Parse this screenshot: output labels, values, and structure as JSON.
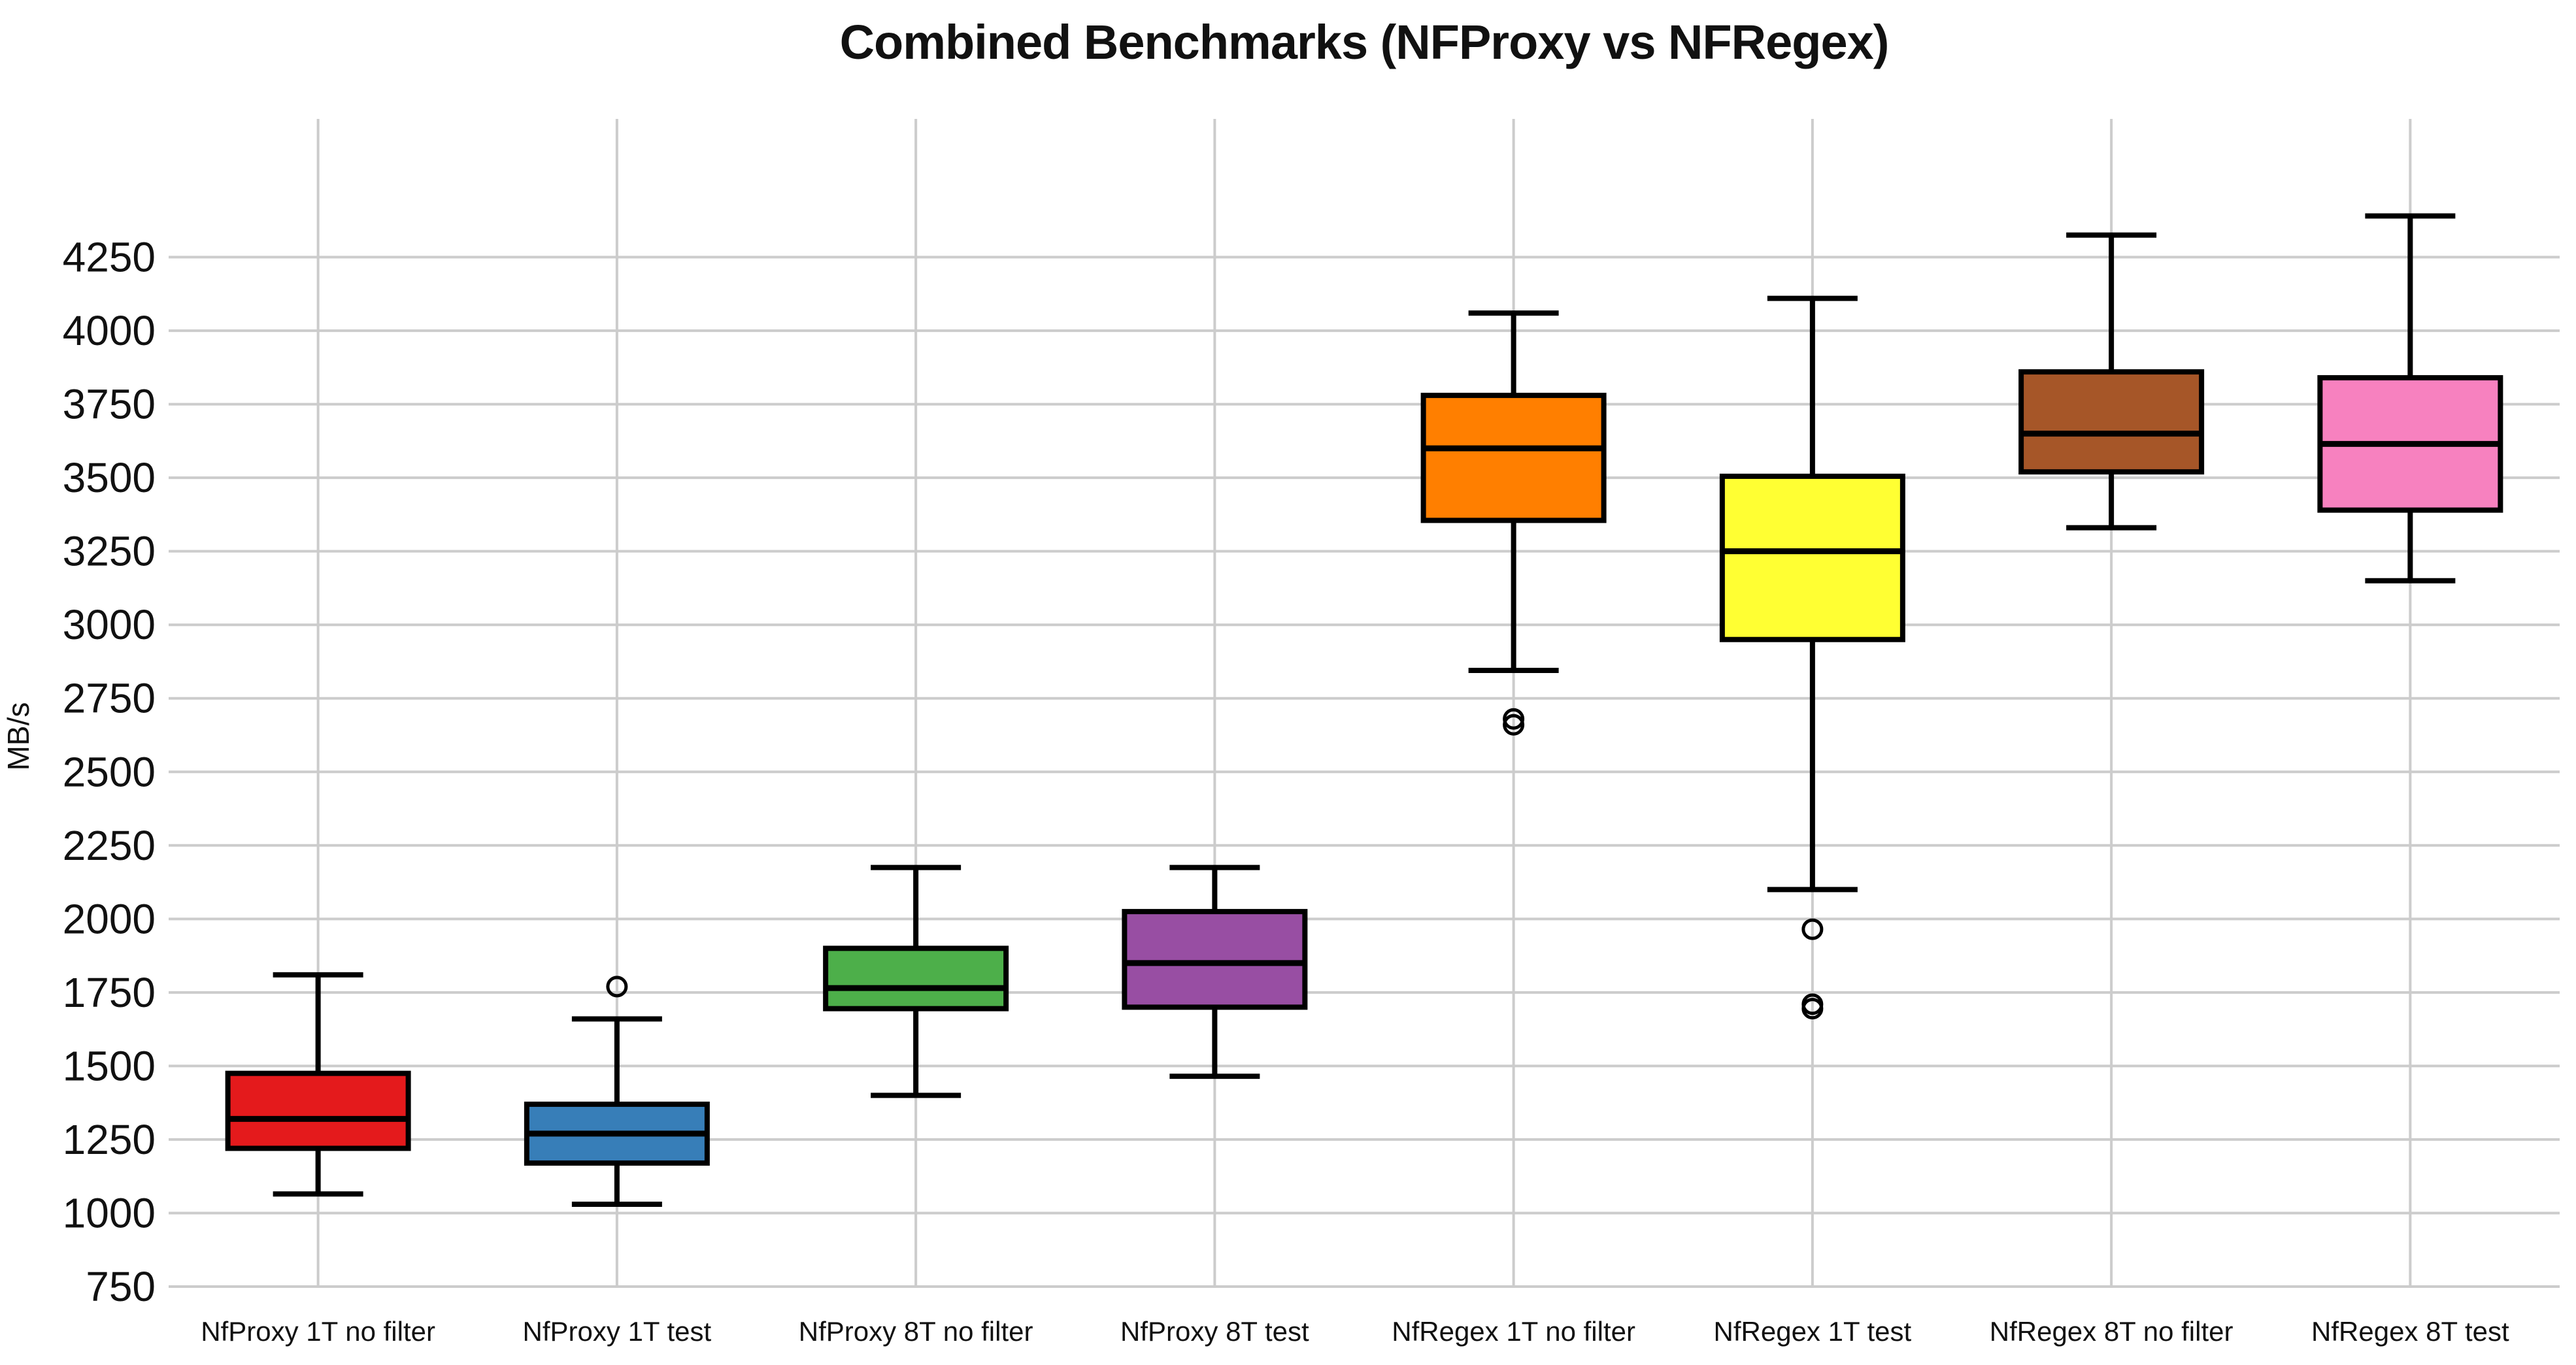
{
  "title": "Combined Benchmarks (NFProxy vs NFRegex)",
  "colors": {
    "background": "#ffffff",
    "grid": "#cccccc",
    "box_border": "#000000",
    "text": "#111111"
  },
  "chart_data": {
    "type": "box",
    "title": "Combined Benchmarks (NFProxy vs NFRegex)",
    "xlabel": "",
    "ylabel": "MB/s",
    "ylim": [
      750,
      4720
    ],
    "yticks": [
      750,
      1000,
      1250,
      1500,
      1750,
      2000,
      2250,
      2500,
      2750,
      3000,
      3250,
      3500,
      3750,
      4000,
      4250
    ],
    "grid": "both",
    "legend": "none",
    "categories": [
      "NfProxy 1T no filter",
      "NfProxy 1T test",
      "NfProxy 8T no filter",
      "NfProxy 8T test",
      "NfRegex 1T no filter",
      "NfRegex 1T test",
      "NfRegex 8T no filter",
      "NfRegex 8T test"
    ],
    "series": [
      {
        "label": "NfProxy 1T no filter",
        "color": "#e41a1c",
        "whisker_low": 1065,
        "q1": 1220,
        "median": 1320,
        "q3": 1475,
        "whisker_high": 1810,
        "outliers": []
      },
      {
        "label": "NfProxy 1T test",
        "color": "#377eb8",
        "whisker_low": 1030,
        "q1": 1170,
        "median": 1270,
        "q3": 1370,
        "whisker_high": 1660,
        "outliers": [
          1770
        ]
      },
      {
        "label": "NfProxy 8T no filter",
        "color": "#4daf4a",
        "whisker_low": 1400,
        "q1": 1695,
        "median": 1765,
        "q3": 1900,
        "whisker_high": 2175,
        "outliers": []
      },
      {
        "label": "NfProxy 8T test",
        "color": "#984ea3",
        "whisker_low": 1465,
        "q1": 1700,
        "median": 1850,
        "q3": 2025,
        "whisker_high": 2175,
        "outliers": []
      },
      {
        "label": "NfRegex 1T no filter",
        "color": "#ff7f00",
        "whisker_low": 2845,
        "q1": 3355,
        "median": 3600,
        "q3": 3780,
        "whisker_high": 4060,
        "outliers": [
          2680,
          2660
        ]
      },
      {
        "label": "NfRegex 1T test",
        "color": "#ffff33",
        "whisker_low": 2100,
        "q1": 2950,
        "median": 3250,
        "q3": 3505,
        "whisker_high": 4110,
        "outliers": [
          1965,
          1710,
          1695
        ]
      },
      {
        "label": "NfRegex 8T no filter",
        "color": "#a65628",
        "whisker_low": 3330,
        "q1": 3520,
        "median": 3650,
        "q3": 3860,
        "whisker_high": 4325,
        "outliers": []
      },
      {
        "label": "NfRegex 8T test",
        "color": "#f781bf",
        "whisker_low": 3150,
        "q1": 3390,
        "median": 3615,
        "q3": 3840,
        "whisker_high": 4390,
        "outliers": []
      }
    ]
  }
}
